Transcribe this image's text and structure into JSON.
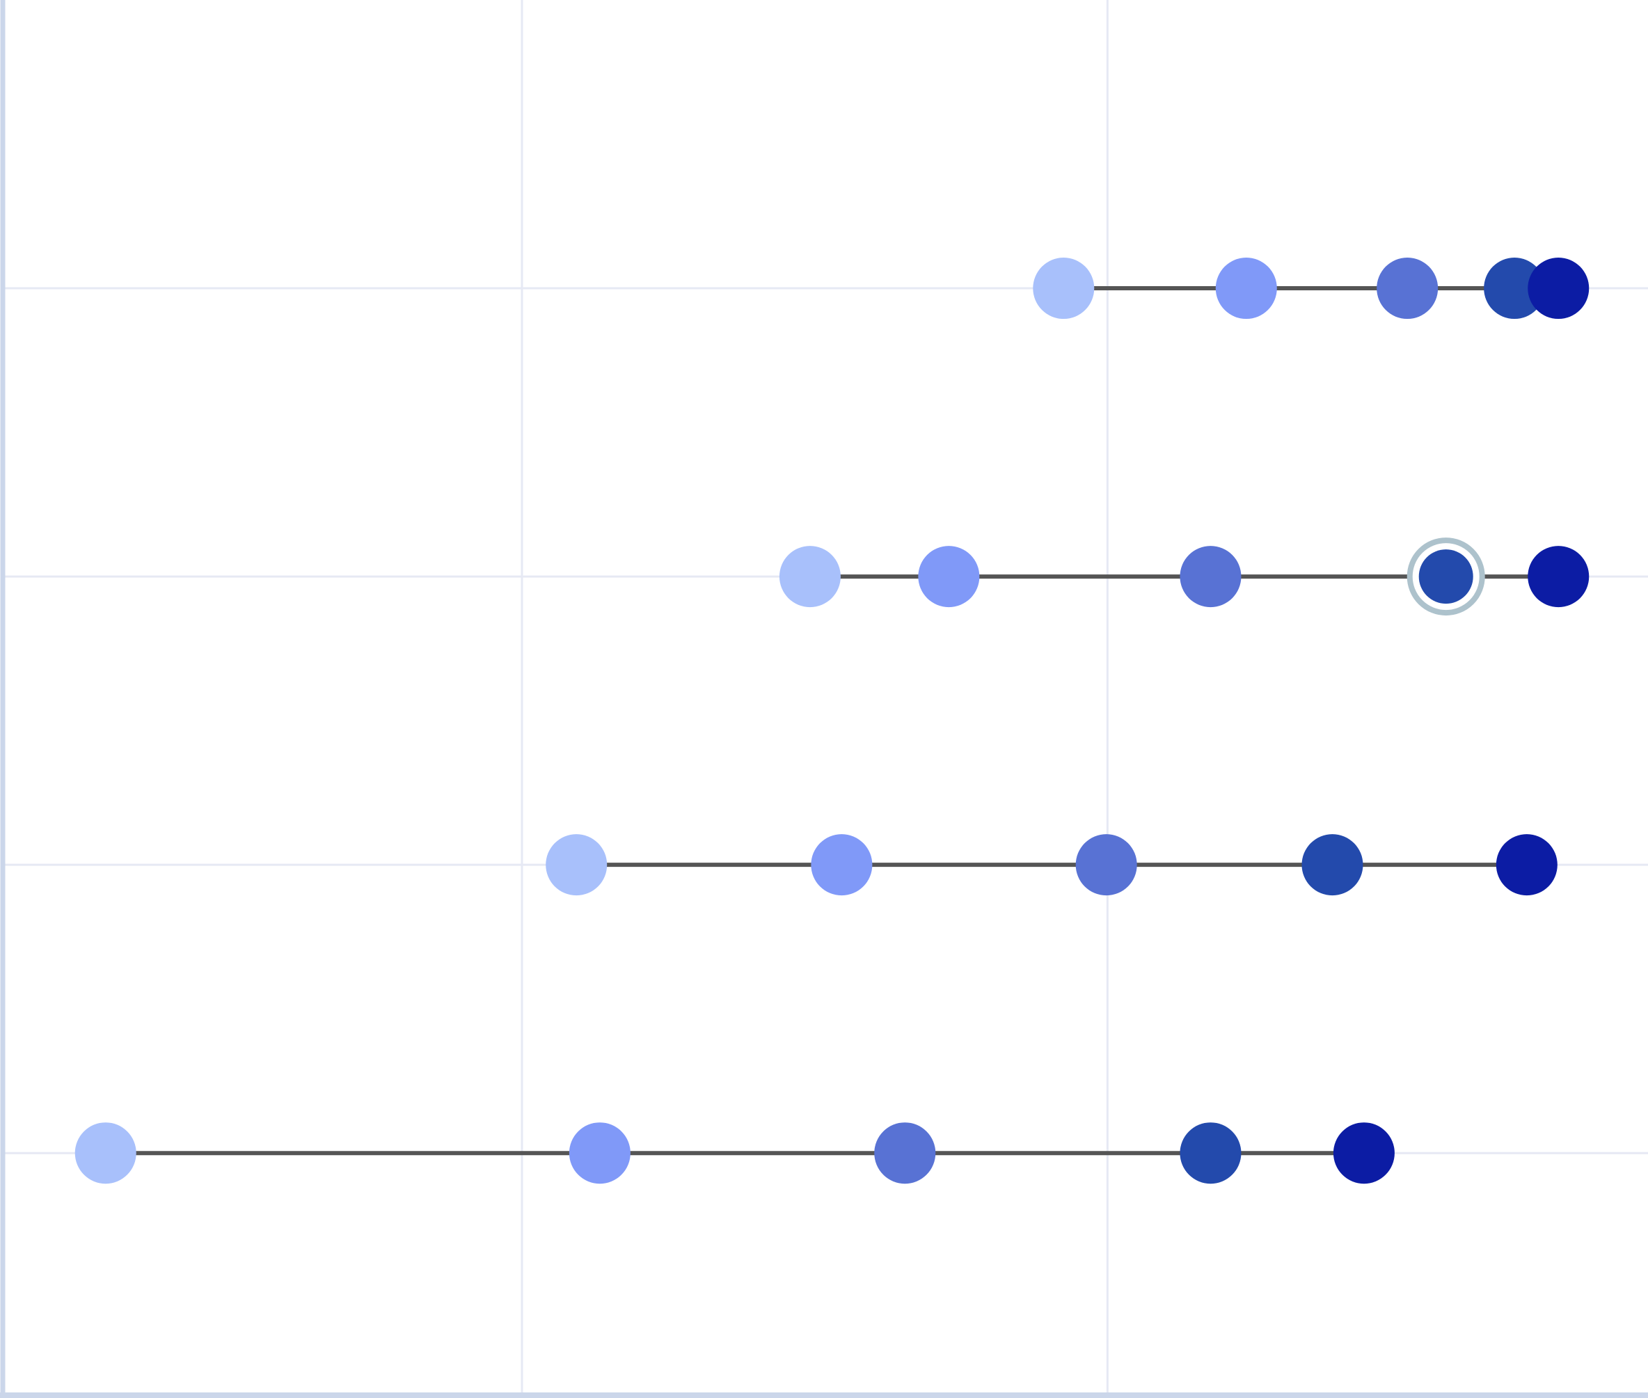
{
  "chart_data": {
    "type": "scatter",
    "subtype": "dot-plot-connected",
    "title": "",
    "xlabel": "",
    "ylabel": "",
    "xlim": [
      0.117,
      2.923
    ],
    "ylim": [
      0,
      4.84
    ],
    "x_gridlines": [
      1,
      2
    ],
    "grid": true,
    "legend": "none",
    "rows": [
      {
        "y": 1,
        "x": [
          1.925,
          2.237,
          2.512,
          2.695,
          2.77
        ]
      },
      {
        "y": 2,
        "x": [
          1.492,
          1.729,
          2.176,
          2.578,
          2.77
        ]
      },
      {
        "y": 3,
        "x": [
          1.093,
          1.546,
          1.998,
          2.384,
          2.716
        ]
      },
      {
        "y": 4,
        "x": [
          0.289,
          1.133,
          1.654,
          2.176,
          2.438
        ]
      }
    ],
    "point_colors": [
      "#a8c0fb",
      "#8099f8",
      "#5872d4",
      "#234aac",
      "#0c1ca4"
    ],
    "highlighted_point": {
      "row": 1,
      "index": 3
    },
    "colors": {
      "connector": "#555555",
      "grid": "#e6e9f4",
      "axis": "#cbd6ea",
      "highlight_ring": "#adc2cc"
    }
  }
}
